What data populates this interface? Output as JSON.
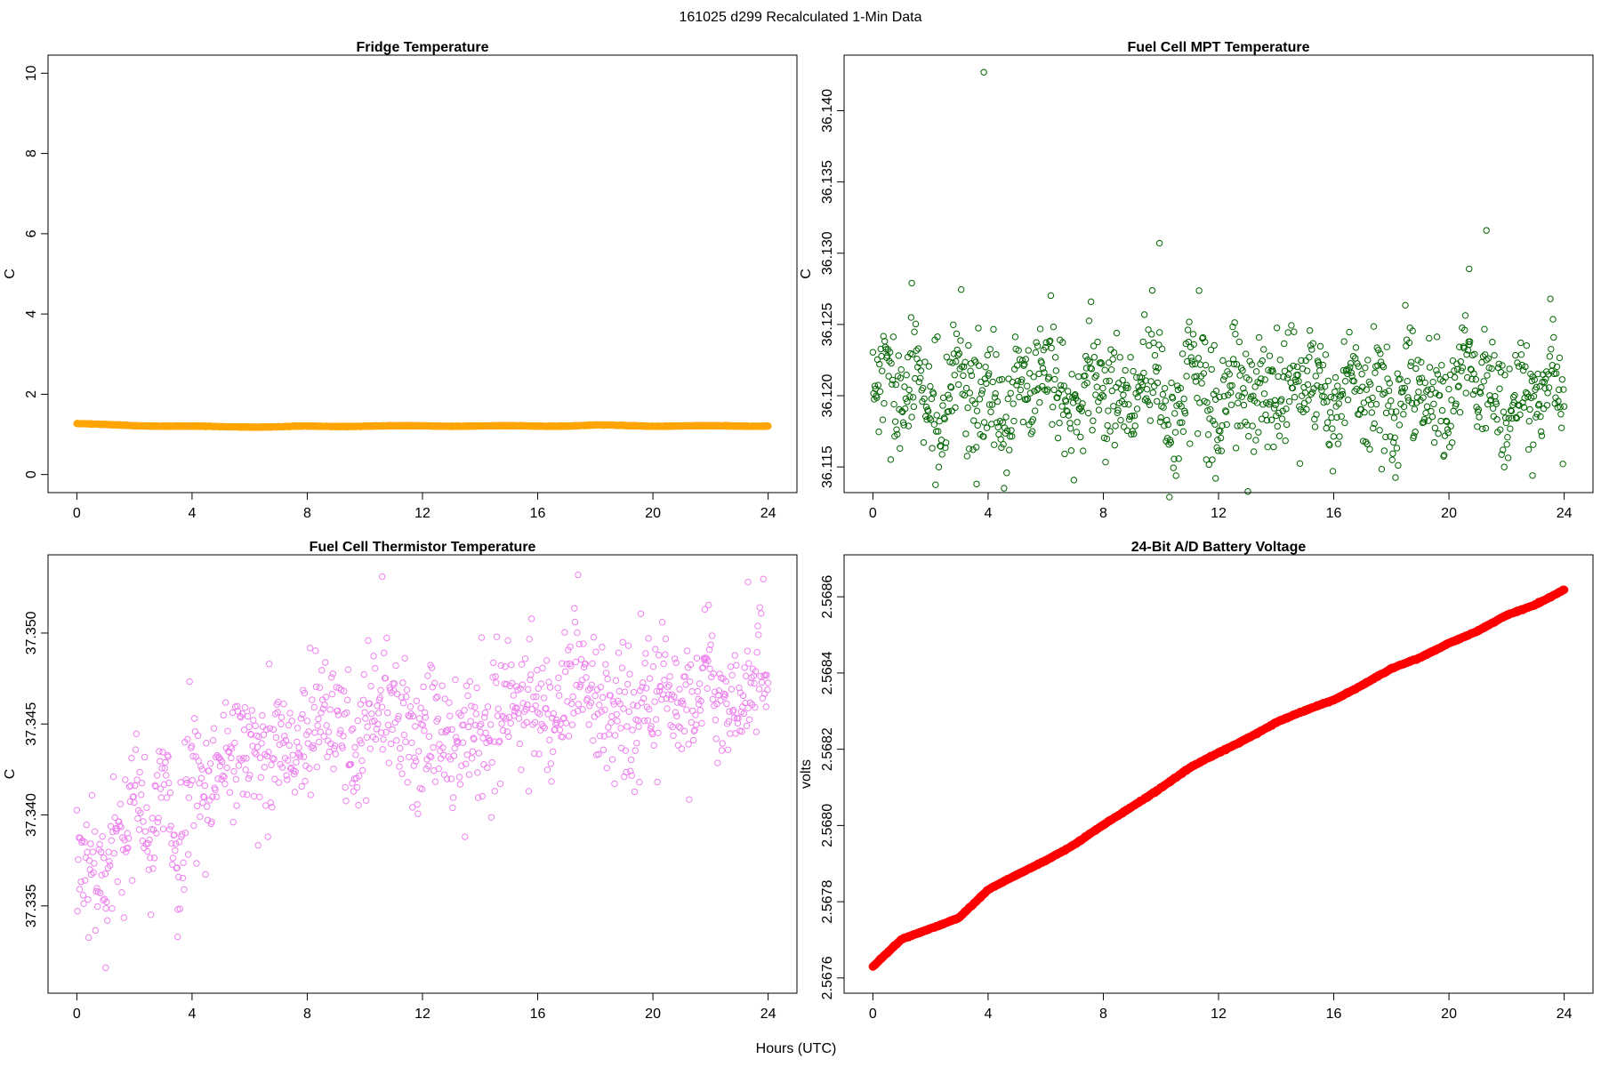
{
  "figure": {
    "title": "161025   d299   Recalculated 1-Min Data",
    "xlabel": "Hours (UTC)"
  },
  "chart_data": [
    {
      "id": "fridge",
      "type": "scatter",
      "title": "Fridge Temperature",
      "xlabel": "",
      "ylabel": "C",
      "xlim": [
        -1,
        25
      ],
      "ylim": [
        -0.45,
        10.45
      ],
      "xticks": [
        0,
        4,
        8,
        12,
        16,
        20,
        24
      ],
      "xtick_labels": [
        "0",
        "4",
        "8",
        "12",
        "16",
        "20",
        "24"
      ],
      "yticks": [
        0,
        2,
        4,
        6,
        8,
        10
      ],
      "ytick_labels": [
        "0",
        "2",
        "4",
        "6",
        "8",
        "10"
      ],
      "color": "#FFA500",
      "marker": "open-circle",
      "series": [
        {
          "x": [
            0,
            1,
            2,
            3,
            4,
            5,
            6,
            7,
            8,
            9,
            10,
            11,
            12,
            13,
            14,
            15,
            16,
            17,
            18,
            19,
            20,
            21,
            22,
            23,
            24
          ],
          "y": [
            1.27,
            1.24,
            1.22,
            1.21,
            1.2,
            1.19,
            1.19,
            1.19,
            1.2,
            1.2,
            1.21,
            1.21,
            1.21,
            1.21,
            1.21,
            1.21,
            1.21,
            1.21,
            1.23,
            1.22,
            1.21,
            1.21,
            1.21,
            1.21,
            1.21
          ]
        }
      ]
    },
    {
      "id": "fc-mpt",
      "type": "scatter",
      "title": "Fuel Cell MPT Temperature",
      "xlabel": "",
      "ylabel": "C",
      "xlim": [
        -1,
        25
      ],
      "ylim": [
        36.1132,
        36.1439
      ],
      "xticks": [
        0,
        4,
        8,
        12,
        16,
        20,
        24
      ],
      "xtick_labels": [
        "0",
        "4",
        "8",
        "12",
        "16",
        "20",
        "24"
      ],
      "yticks": [
        36.115,
        36.12,
        36.125,
        36.13,
        36.135,
        36.14
      ],
      "ytick_labels": [
        "36.115",
        "36.120",
        "36.125",
        "36.130",
        "36.135",
        "36.140"
      ],
      "color": "#006400",
      "marker": "open-circle",
      "series": [
        {
          "x": [
            0,
            0.5,
            1,
            1.5,
            2,
            2.5,
            3,
            3.5,
            4,
            4.5,
            5,
            5.5,
            6,
            6.5,
            7,
            7.5,
            8,
            8.5,
            9,
            9.5,
            10,
            10.5,
            11,
            11.5,
            12,
            12.5,
            13,
            13.5,
            14,
            14.5,
            15,
            15.5,
            16,
            16.5,
            17,
            17.5,
            18,
            18.5,
            19,
            19.5,
            20,
            20.5,
            21,
            21.5,
            22,
            22.5,
            23,
            23.5,
            24,
            3.85,
            9.95,
            21.3,
            1.35,
            20.7,
            3.6,
            11.9,
            22.9
          ],
          "y": [
            36.1202,
            36.1215,
            36.1184,
            36.1223,
            36.1197,
            36.1178,
            36.1231,
            36.1192,
            36.1209,
            36.1168,
            36.1214,
            36.1189,
            36.1226,
            36.1201,
            36.1177,
            36.1219,
            36.1195,
            36.1212,
            36.1183,
            36.1228,
            36.1199,
            36.1172,
            36.1217,
            36.1204,
            36.1186,
            36.1221,
            36.1193,
            36.1208,
            36.1176,
            36.1224,
            36.1198,
            36.1213,
            36.1181,
            36.1227,
            36.1191,
            36.1206,
            36.1174,
            36.1222,
            36.1196,
            36.1211,
            36.1185,
            36.1229,
            36.1203,
            36.1218,
            36.1179,
            36.1216,
            36.1194,
            36.1225,
            36.1188,
            36.1427,
            36.1307,
            36.1316,
            36.1279,
            36.1289,
            36.1138,
            36.1142,
            36.1144
          ]
        }
      ]
    },
    {
      "id": "fc-thermistor",
      "type": "scatter",
      "title": "Fuel Cell Thermistor Temperature",
      "xlabel": "",
      "ylabel": "C",
      "xlim": [
        -1,
        25
      ],
      "ylim": [
        37.3302,
        37.3543
      ],
      "xticks": [
        0,
        4,
        8,
        12,
        16,
        20,
        24
      ],
      "xtick_labels": [
        "0",
        "4",
        "8",
        "12",
        "16",
        "20",
        "24"
      ],
      "yticks": [
        37.335,
        37.34,
        37.345,
        37.35
      ],
      "ytick_labels": [
        "37.335",
        "37.340",
        "37.345",
        "37.350"
      ],
      "color": "#EE82EE",
      "marker": "open-circle",
      "series": [
        {
          "x": [
            0,
            0.5,
            1,
            1.5,
            2,
            2.5,
            3,
            3.5,
            4,
            4.5,
            5,
            5.5,
            6,
            6.5,
            7,
            7.5,
            8,
            8.5,
            9,
            9.5,
            10,
            10.5,
            11,
            11.5,
            12,
            12.5,
            13,
            13.5,
            14,
            14.5,
            15,
            15.5,
            16,
            16.5,
            17,
            17.5,
            18,
            18.5,
            19,
            19.5,
            20,
            20.5,
            21,
            21.5,
            22,
            22.5,
            23,
            23.5,
            24,
            1,
            3.5,
            10.6,
            17.4,
            21.8,
            23.3
          ],
          "y": [
            37.3375,
            37.338,
            37.3365,
            37.339,
            37.341,
            37.3385,
            37.342,
            37.3372,
            37.3435,
            37.3415,
            37.3428,
            37.3441,
            37.3432,
            37.3425,
            37.3438,
            37.3429,
            37.3442,
            37.345,
            37.3455,
            37.3437,
            37.3444,
            37.3462,
            37.3451,
            37.3448,
            37.3441,
            37.3456,
            37.3439,
            37.3447,
            37.3443,
            37.3452,
            37.3458,
            37.3461,
            37.3466,
            37.3449,
            37.3474,
            37.3482,
            37.3451,
            37.3463,
            37.3442,
            37.3455,
            37.3468,
            37.3471,
            37.3452,
            37.3464,
            37.3478,
            37.3469,
            37.3457,
            37.3474,
            37.3476,
            37.3316,
            37.3333,
            37.3531,
            37.3532,
            37.3513,
            37.3528
          ]
        }
      ]
    },
    {
      "id": "battery",
      "type": "scatter",
      "title": "24-Bit A/D Battery Voltage",
      "xlabel": "",
      "ylabel": "volts",
      "xlim": [
        -1,
        25
      ],
      "ylim": [
        2.56756,
        2.56871
      ],
      "xticks": [
        0,
        4,
        8,
        12,
        16,
        20,
        24
      ],
      "xtick_labels": [
        "0",
        "4",
        "8",
        "12",
        "16",
        "20",
        "24"
      ],
      "yticks": [
        2.5676,
        2.5678,
        2.568,
        2.5682,
        2.5684,
        2.5686
      ],
      "ytick_labels": [
        "2.5676",
        "2.5678",
        "2.5680",
        "2.5682",
        "2.5684",
        "2.5686"
      ],
      "color": "#FF0000",
      "marker": "open-circle",
      "series": [
        {
          "x": [
            0,
            1,
            2,
            3,
            4,
            5,
            6,
            7,
            8,
            9,
            10,
            11,
            12,
            13,
            14,
            15,
            16,
            17,
            18,
            19,
            20,
            21,
            22,
            23,
            24
          ],
          "y": [
            2.56763,
            2.5677,
            2.56773,
            2.56776,
            2.56783,
            2.56787,
            2.56791,
            2.56795,
            2.568,
            2.56805,
            2.5681,
            2.56815,
            2.56819,
            2.56823,
            2.56827,
            2.5683,
            2.56833,
            2.56837,
            2.56841,
            2.56844,
            2.56848,
            2.56851,
            2.56855,
            2.56858,
            2.56862
          ]
        }
      ]
    }
  ]
}
